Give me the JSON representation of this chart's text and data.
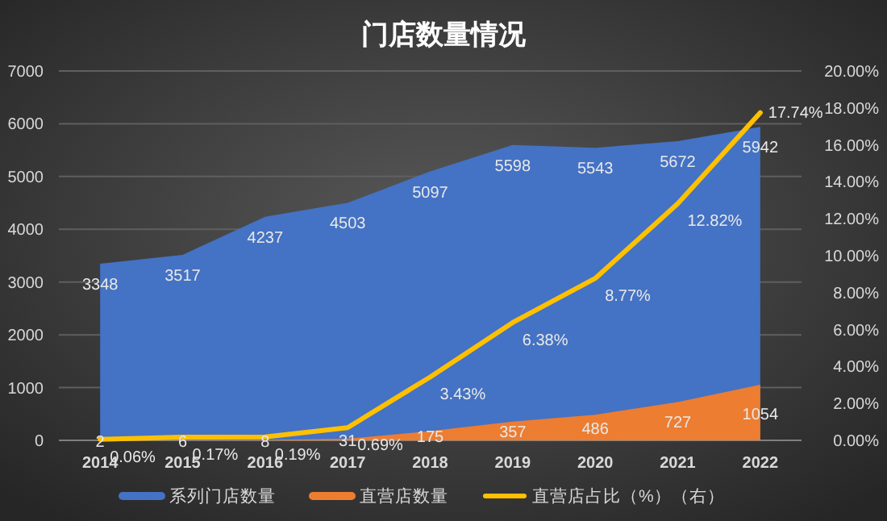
{
  "chart_data": {
    "type": "area",
    "title": "门店数量情况",
    "categories": [
      "2014",
      "2015",
      "2016",
      "2017",
      "2018",
      "2019",
      "2020",
      "2021",
      "2022"
    ],
    "series": [
      {
        "name": "系列门店数量",
        "color": "#4472c4",
        "values": [
          3348,
          3517,
          4237,
          4503,
          5097,
          5598,
          5543,
          5672,
          5942
        ],
        "value_labels": [
          "3348",
          "3517",
          "4237",
          "4503",
          "5097",
          "5598",
          "5543",
          "5672",
          "5942"
        ]
      },
      {
        "name": "直营店数量",
        "color": "#ed7d31",
        "values": [
          2,
          6,
          8,
          31,
          175,
          357,
          486,
          727,
          1054
        ],
        "value_labels": [
          "2",
          "6",
          "8",
          "31",
          "175",
          "357",
          "486",
          "727",
          "1054"
        ]
      },
      {
        "name": "直营店占比（%）（右）",
        "type": "line",
        "axis": "y2",
        "color": "#ffc000",
        "values": [
          0.06,
          0.17,
          0.19,
          0.69,
          3.43,
          6.38,
          8.77,
          12.82,
          17.74
        ],
        "value_labels": [
          "0.06%",
          "0.17%",
          "0.19%",
          "0.69%",
          "3.43%",
          "6.38%",
          "8.77%",
          "12.82%",
          "17.74%"
        ]
      }
    ],
    "ylim": [
      0,
      7000
    ],
    "yticks": [
      0,
      1000,
      2000,
      3000,
      4000,
      5000,
      6000,
      7000
    ],
    "y2lim": [
      0,
      20
    ],
    "y2ticks": [
      {
        "value": 0,
        "label": "0.00%"
      },
      {
        "value": 2,
        "label": "2.00%"
      },
      {
        "value": 4,
        "label": "4.00%"
      },
      {
        "value": 6,
        "label": "6.00%"
      },
      {
        "value": 8,
        "label": "8.00%"
      },
      {
        "value": 10,
        "label": "10.00%"
      },
      {
        "value": 12,
        "label": "12.00%"
      },
      {
        "value": 14,
        "label": "14.00%"
      },
      {
        "value": 16,
        "label": "16.00%"
      },
      {
        "value": 18,
        "label": "18.00%"
      },
      {
        "value": 20,
        "label": "20.00%"
      }
    ],
    "grid": "y",
    "legend": "bottom"
  }
}
